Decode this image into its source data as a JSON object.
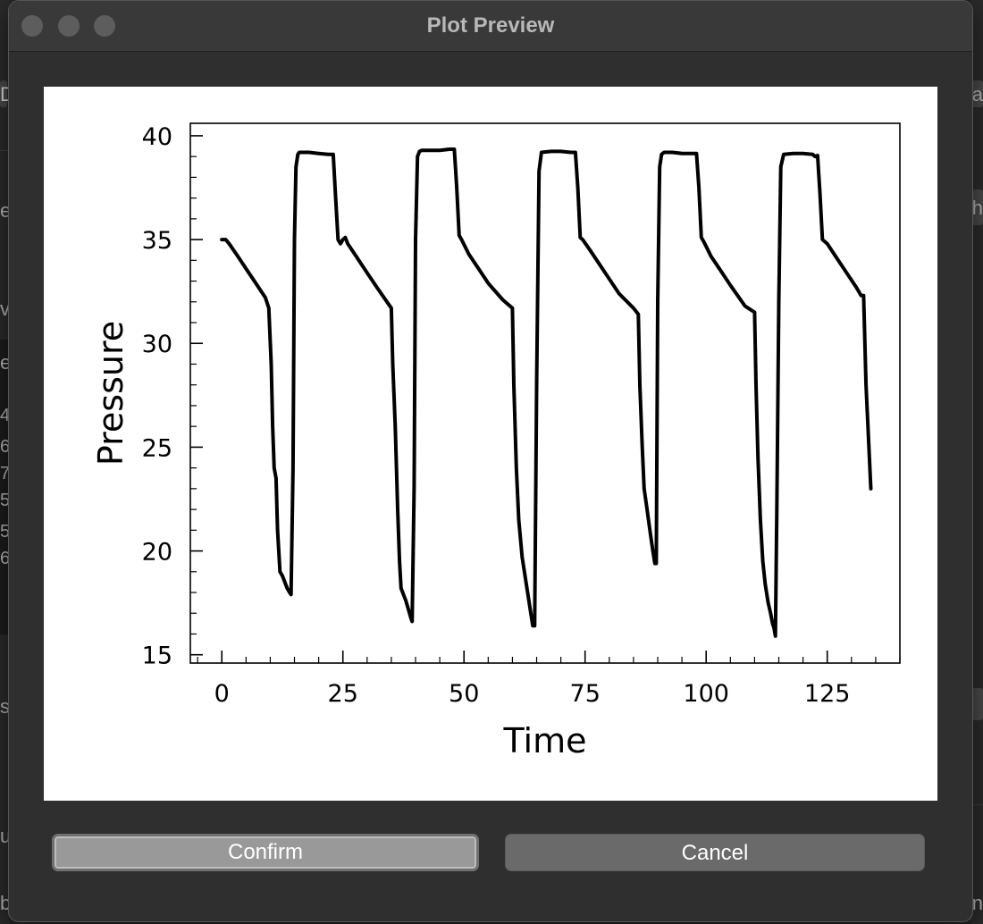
{
  "window": {
    "title": "Plot Preview"
  },
  "buttons": {
    "confirm_label": "Confirm",
    "cancel_label": "Cancel"
  },
  "background_fragments": {
    "left": [
      "D",
      "e",
      "vi",
      "e",
      "4",
      "6",
      "7",
      "5",
      "5",
      "6",
      "s",
      "u",
      "b"
    ],
    "right": [
      "a",
      "th",
      "n"
    ]
  },
  "colors": {
    "window_bg": "#2f2f2f",
    "titlebar_bg": "#393939",
    "plot_bg": "#ffffff",
    "line": "#000000",
    "confirm_bg": "#999999",
    "cancel_bg": "#6a6a6a"
  },
  "chart_data": {
    "type": "line",
    "title": "",
    "xlabel": "Time",
    "ylabel": "Pressure",
    "xlim": [
      -6.5,
      140
    ],
    "ylim": [
      14.6,
      40.6
    ],
    "xticks": [
      0,
      25,
      50,
      75,
      100,
      125
    ],
    "yticks": [
      15,
      20,
      25,
      30,
      35,
      40
    ],
    "x_minor_step": 5,
    "y_minor_step": 1,
    "grid": false,
    "legend": "none",
    "series": [
      {
        "x": [
          0,
          0.8,
          1.5,
          3,
          5,
          7,
          9,
          9.7,
          10.2,
          10.5,
          10.8,
          11.2,
          11.5,
          12,
          12.5,
          13,
          13.5,
          14,
          14.3,
          14.7,
          15,
          15.3,
          15.7,
          16,
          18,
          20,
          22,
          23,
          23.5,
          24,
          24.5,
          25,
          25.5,
          26,
          28,
          30,
          32,
          35,
          35.3,
          35.8,
          36.3,
          36.7,
          37,
          37.5,
          38,
          38.5,
          39,
          39.3,
          39.7,
          40,
          40.4,
          40.8,
          41.3,
          43,
          45,
          47,
          48,
          48.5,
          49,
          49.5,
          51,
          53,
          55,
          58,
          60,
          60.3,
          60.8,
          61.3,
          62,
          63,
          63.8,
          64.2,
          64.6,
          65,
          65.5,
          66,
          68,
          70,
          72,
          73,
          73.5,
          74,
          74.5,
          76,
          78,
          80,
          82,
          85,
          86,
          86.3,
          86.8,
          87.2,
          87.8,
          88.5,
          89,
          89.4,
          89.7,
          90,
          90.4,
          90.8,
          91.3,
          93,
          95,
          97,
          98,
          98.5,
          99,
          99.5,
          101,
          103,
          105,
          108,
          110,
          110.3,
          110.7,
          111.2,
          111.7,
          112.2,
          112.8,
          113.3,
          113.7,
          114,
          114.3,
          114.6,
          115,
          115.4,
          116,
          118,
          120,
          122,
          122.5,
          123,
          123.5,
          124,
          124.5,
          125,
          127,
          129,
          131,
          132,
          132.5,
          133,
          134
        ],
        "y": [
          35,
          35,
          34.8,
          34.3,
          33.6,
          32.9,
          32.2,
          31.7,
          29,
          26,
          24,
          23.5,
          21,
          19,
          18.8,
          18.5,
          18.2,
          18,
          17.9,
          24,
          35,
          38.5,
          39.1,
          39.2,
          39.2,
          39.15,
          39.1,
          39.1,
          37,
          35,
          34.8,
          35,
          35.1,
          34.8,
          34.1,
          33.4,
          32.7,
          31.7,
          29,
          26,
          22,
          19.5,
          18.2,
          17.9,
          17.6,
          17.2,
          16.8,
          16.6,
          23,
          35,
          39,
          39.25,
          39.3,
          39.3,
          39.3,
          39.35,
          39.35,
          37.5,
          35.2,
          35,
          34.3,
          33.6,
          32.9,
          32.1,
          31.7,
          28,
          24,
          21.5,
          19.7,
          18.2,
          17,
          16.4,
          16.4,
          28,
          38.3,
          39.2,
          39.25,
          39.25,
          39.2,
          39.2,
          37.5,
          35.1,
          35,
          34.5,
          33.8,
          33.1,
          32.4,
          31.7,
          31.4,
          28,
          25,
          23,
          22,
          20.8,
          20,
          19.4,
          19.4,
          32,
          38.5,
          39.1,
          39.2,
          39.2,
          39.15,
          39.15,
          39.15,
          37.5,
          35.1,
          34.9,
          34.2,
          33.5,
          32.8,
          31.8,
          31.5,
          28,
          24.5,
          21.5,
          19.5,
          18.4,
          17.5,
          17,
          16.5,
          16.3,
          15.9,
          22,
          32,
          38.5,
          39.1,
          39.15,
          39.15,
          39.1,
          39,
          39.05,
          37.2,
          35,
          34.9,
          34.8,
          34.1,
          33.4,
          32.7,
          32.3,
          32.3,
          28,
          23
        ]
      }
    ]
  }
}
